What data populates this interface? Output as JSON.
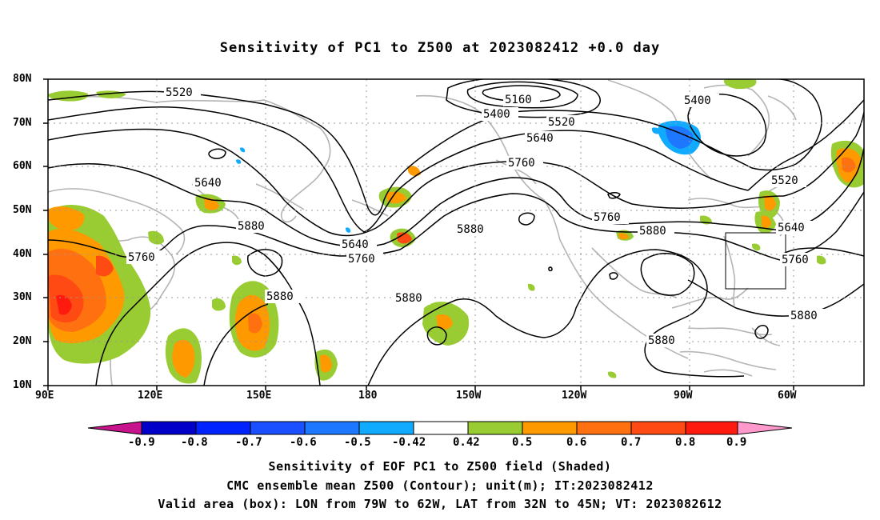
{
  "title": "Sensitivity of PC1 to Z500 at 2023082412 +0.0 day",
  "lat_labels": [
    "80N",
    "70N",
    "60N",
    "50N",
    "40N",
    "30N",
    "20N",
    "10N"
  ],
  "lon_labels": [
    "90E",
    "120E",
    "150E",
    "180",
    "150W",
    "120W",
    "90W",
    "60W"
  ],
  "contour_labels": {
    "c5520a": "5520",
    "c5160": "5160",
    "c5400a": "5400",
    "c5400b": "5400",
    "c5520b": "5520",
    "c5640a": "5640",
    "c5760a": "5760",
    "c5520c": "5520",
    "c5640b": "5640",
    "c5880a": "5880",
    "c5640c": "5640",
    "c5760b": "5760",
    "c5880b": "5880",
    "c5760c": "5760",
    "c5880c": "5880",
    "c5640d": "5640",
    "c5760d": "5760",
    "c5880d": "5880",
    "c5880e": "5880",
    "c5880f": "5880",
    "c5880g": "5880",
    "c5760e": "5760"
  },
  "colorbar": {
    "labels": [
      "-0.9",
      "-0.8",
      "-0.7",
      "-0.6",
      "-0.5",
      "-0.42",
      "0.42",
      "0.5",
      "0.6",
      "0.7",
      "0.8",
      "0.9"
    ],
    "colors": [
      "#0000c8",
      "#0022ff",
      "#1a50ff",
      "#1e78ff",
      "#10aaff",
      "#00c8ff",
      "#ffffff",
      "#99cc33",
      "#ff9900",
      "#ff7010",
      "#ff4a14",
      "#ff1a10"
    ],
    "low_color": "#c8148c",
    "high_color": "#ff99cc"
  },
  "captions": [
    "Sensitivity of EOF PC1 to Z500 field (Shaded)",
    "CMC ensemble mean Z500 (Contour); unit(m); IT:2023082412",
    "Valid area (box): LON from 79W to 62W, LAT from 32N to 45N; VT: 2023082612"
  ],
  "valid_area": {
    "lon": [
      "79W",
      "62W"
    ],
    "lat": [
      "32N",
      "45N"
    ]
  }
}
